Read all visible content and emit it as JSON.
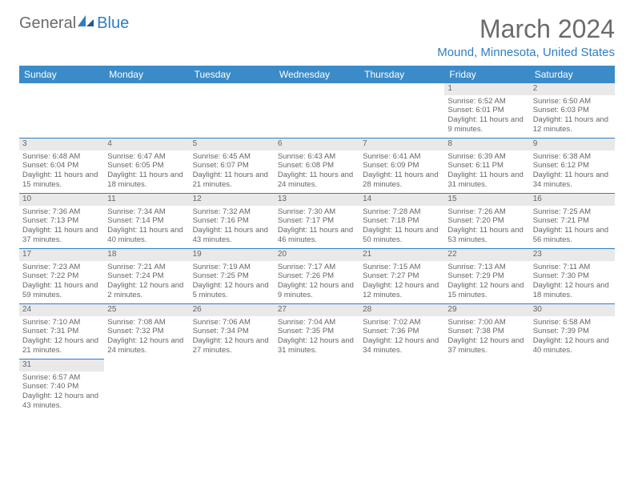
{
  "logo": {
    "text_general": "General",
    "text_blue": "Blue"
  },
  "title": "March 2024",
  "subtitle": "Mound, Minnesota, United States",
  "colors": {
    "header_bg": "#3b8bc9",
    "header_text": "#ffffff",
    "accent": "#2f7ec2",
    "daynum_bg": "#e9e9e9",
    "text": "#666666",
    "logo_gray": "#6b6b6b"
  },
  "weekdays": [
    "Sunday",
    "Monday",
    "Tuesday",
    "Wednesday",
    "Thursday",
    "Friday",
    "Saturday"
  ],
  "weeks": [
    [
      null,
      null,
      null,
      null,
      null,
      {
        "n": "1",
        "sr": "Sunrise: 6:52 AM",
        "ss": "Sunset: 6:01 PM",
        "dl": "Daylight: 11 hours and 9 minutes."
      },
      {
        "n": "2",
        "sr": "Sunrise: 6:50 AM",
        "ss": "Sunset: 6:03 PM",
        "dl": "Daylight: 11 hours and 12 minutes."
      }
    ],
    [
      {
        "n": "3",
        "sr": "Sunrise: 6:48 AM",
        "ss": "Sunset: 6:04 PM",
        "dl": "Daylight: 11 hours and 15 minutes."
      },
      {
        "n": "4",
        "sr": "Sunrise: 6:47 AM",
        "ss": "Sunset: 6:05 PM",
        "dl": "Daylight: 11 hours and 18 minutes."
      },
      {
        "n": "5",
        "sr": "Sunrise: 6:45 AM",
        "ss": "Sunset: 6:07 PM",
        "dl": "Daylight: 11 hours and 21 minutes."
      },
      {
        "n": "6",
        "sr": "Sunrise: 6:43 AM",
        "ss": "Sunset: 6:08 PM",
        "dl": "Daylight: 11 hours and 24 minutes."
      },
      {
        "n": "7",
        "sr": "Sunrise: 6:41 AM",
        "ss": "Sunset: 6:09 PM",
        "dl": "Daylight: 11 hours and 28 minutes."
      },
      {
        "n": "8",
        "sr": "Sunrise: 6:39 AM",
        "ss": "Sunset: 6:11 PM",
        "dl": "Daylight: 11 hours and 31 minutes."
      },
      {
        "n": "9",
        "sr": "Sunrise: 6:38 AM",
        "ss": "Sunset: 6:12 PM",
        "dl": "Daylight: 11 hours and 34 minutes."
      }
    ],
    [
      {
        "n": "10",
        "sr": "Sunrise: 7:36 AM",
        "ss": "Sunset: 7:13 PM",
        "dl": "Daylight: 11 hours and 37 minutes."
      },
      {
        "n": "11",
        "sr": "Sunrise: 7:34 AM",
        "ss": "Sunset: 7:14 PM",
        "dl": "Daylight: 11 hours and 40 minutes."
      },
      {
        "n": "12",
        "sr": "Sunrise: 7:32 AM",
        "ss": "Sunset: 7:16 PM",
        "dl": "Daylight: 11 hours and 43 minutes."
      },
      {
        "n": "13",
        "sr": "Sunrise: 7:30 AM",
        "ss": "Sunset: 7:17 PM",
        "dl": "Daylight: 11 hours and 46 minutes."
      },
      {
        "n": "14",
        "sr": "Sunrise: 7:28 AM",
        "ss": "Sunset: 7:18 PM",
        "dl": "Daylight: 11 hours and 50 minutes."
      },
      {
        "n": "15",
        "sr": "Sunrise: 7:26 AM",
        "ss": "Sunset: 7:20 PM",
        "dl": "Daylight: 11 hours and 53 minutes."
      },
      {
        "n": "16",
        "sr": "Sunrise: 7:25 AM",
        "ss": "Sunset: 7:21 PM",
        "dl": "Daylight: 11 hours and 56 minutes."
      }
    ],
    [
      {
        "n": "17",
        "sr": "Sunrise: 7:23 AM",
        "ss": "Sunset: 7:22 PM",
        "dl": "Daylight: 11 hours and 59 minutes."
      },
      {
        "n": "18",
        "sr": "Sunrise: 7:21 AM",
        "ss": "Sunset: 7:24 PM",
        "dl": "Daylight: 12 hours and 2 minutes."
      },
      {
        "n": "19",
        "sr": "Sunrise: 7:19 AM",
        "ss": "Sunset: 7:25 PM",
        "dl": "Daylight: 12 hours and 5 minutes."
      },
      {
        "n": "20",
        "sr": "Sunrise: 7:17 AM",
        "ss": "Sunset: 7:26 PM",
        "dl": "Daylight: 12 hours and 9 minutes."
      },
      {
        "n": "21",
        "sr": "Sunrise: 7:15 AM",
        "ss": "Sunset: 7:27 PM",
        "dl": "Daylight: 12 hours and 12 minutes."
      },
      {
        "n": "22",
        "sr": "Sunrise: 7:13 AM",
        "ss": "Sunset: 7:29 PM",
        "dl": "Daylight: 12 hours and 15 minutes."
      },
      {
        "n": "23",
        "sr": "Sunrise: 7:11 AM",
        "ss": "Sunset: 7:30 PM",
        "dl": "Daylight: 12 hours and 18 minutes."
      }
    ],
    [
      {
        "n": "24",
        "sr": "Sunrise: 7:10 AM",
        "ss": "Sunset: 7:31 PM",
        "dl": "Daylight: 12 hours and 21 minutes."
      },
      {
        "n": "25",
        "sr": "Sunrise: 7:08 AM",
        "ss": "Sunset: 7:32 PM",
        "dl": "Daylight: 12 hours and 24 minutes."
      },
      {
        "n": "26",
        "sr": "Sunrise: 7:06 AM",
        "ss": "Sunset: 7:34 PM",
        "dl": "Daylight: 12 hours and 27 minutes."
      },
      {
        "n": "27",
        "sr": "Sunrise: 7:04 AM",
        "ss": "Sunset: 7:35 PM",
        "dl": "Daylight: 12 hours and 31 minutes."
      },
      {
        "n": "28",
        "sr": "Sunrise: 7:02 AM",
        "ss": "Sunset: 7:36 PM",
        "dl": "Daylight: 12 hours and 34 minutes."
      },
      {
        "n": "29",
        "sr": "Sunrise: 7:00 AM",
        "ss": "Sunset: 7:38 PM",
        "dl": "Daylight: 12 hours and 37 minutes."
      },
      {
        "n": "30",
        "sr": "Sunrise: 6:58 AM",
        "ss": "Sunset: 7:39 PM",
        "dl": "Daylight: 12 hours and 40 minutes."
      }
    ],
    [
      {
        "n": "31",
        "sr": "Sunrise: 6:57 AM",
        "ss": "Sunset: 7:40 PM",
        "dl": "Daylight: 12 hours and 43 minutes."
      },
      null,
      null,
      null,
      null,
      null,
      null
    ]
  ]
}
